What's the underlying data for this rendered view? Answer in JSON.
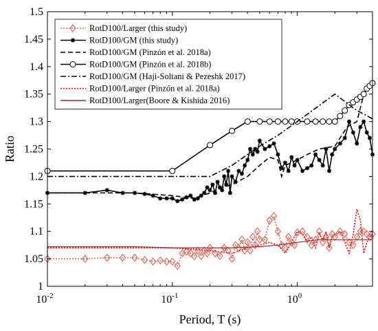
{
  "chart_data": {
    "type": "line",
    "xlabel": "Period, T (s)",
    "ylabel": "Ratio",
    "xscale": "log",
    "xlim": [
      0.01,
      4
    ],
    "ylim": [
      1,
      1.5
    ],
    "grid": false,
    "legend_position": "top-left",
    "y_ticks": [
      "1",
      "1.05",
      "1.1",
      "1.15",
      "1.2",
      "1.25",
      "1.3",
      "1.35",
      "1.4",
      "1.45",
      "1.5"
    ],
    "x_ticks": [
      {
        "value": 0.01,
        "base": "10",
        "exp": "-2"
      },
      {
        "value": 0.1,
        "base": "10",
        "exp": "-1"
      },
      {
        "value": 1,
        "base": "10",
        "exp": "0"
      }
    ],
    "series": [
      {
        "name": "RotD100/Larger (this study)",
        "color": "#e06a5a",
        "style": "dotted",
        "marker": "diamond",
        "x": [
          0.01,
          0.02,
          0.03,
          0.04,
          0.05,
          0.06,
          0.07,
          0.08,
          0.09,
          0.1,
          0.11,
          0.12,
          0.13,
          0.14,
          0.15,
          0.16,
          0.17,
          0.18,
          0.19,
          0.2,
          0.22,
          0.24,
          0.26,
          0.28,
          0.3,
          0.32,
          0.34,
          0.36,
          0.38,
          0.4,
          0.42,
          0.44,
          0.46,
          0.48,
          0.5,
          0.55,
          0.6,
          0.65,
          0.7,
          0.75,
          0.8,
          0.85,
          0.9,
          0.95,
          1.0,
          1.1,
          1.2,
          1.3,
          1.4,
          1.5,
          1.6,
          1.7,
          1.8,
          1.9,
          2.0,
          2.2,
          2.4,
          2.6,
          2.8,
          3.0,
          3.2,
          3.4,
          3.6,
          3.8,
          4.0
        ],
        "y": [
          1.05,
          1.05,
          1.052,
          1.052,
          1.052,
          1.048,
          1.045,
          1.047,
          1.045,
          1.045,
          1.037,
          1.06,
          1.063,
          1.06,
          1.055,
          1.065,
          1.055,
          1.065,
          1.06,
          1.07,
          1.06,
          1.055,
          1.07,
          1.065,
          1.05,
          1.075,
          1.07,
          1.085,
          1.065,
          1.08,
          1.065,
          1.09,
          1.075,
          1.1,
          1.085,
          1.085,
          1.12,
          1.128,
          1.1,
          1.075,
          1.07,
          1.09,
          1.08,
          1.075,
          1.098,
          1.1,
          1.09,
          1.075,
          1.085,
          1.1,
          1.08,
          1.09,
          1.07,
          1.095,
          1.09,
          1.1,
          1.095,
          1.08,
          1.075,
          1.09,
          1.1,
          1.1,
          1.095,
          1.09,
          1.095
        ]
      },
      {
        "name": "RotD100/GM (this study)",
        "color": "#000000",
        "style": "solid",
        "marker": "star",
        "x": [
          0.01,
          0.02,
          0.03,
          0.04,
          0.05,
          0.06,
          0.07,
          0.08,
          0.09,
          0.1,
          0.11,
          0.12,
          0.13,
          0.14,
          0.15,
          0.16,
          0.17,
          0.18,
          0.19,
          0.2,
          0.21,
          0.22,
          0.23,
          0.24,
          0.25,
          0.26,
          0.27,
          0.28,
          0.29,
          0.3,
          0.32,
          0.34,
          0.36,
          0.38,
          0.4,
          0.42,
          0.44,
          0.46,
          0.48,
          0.5,
          0.55,
          0.6,
          0.65,
          0.7,
          0.75,
          0.8,
          0.85,
          0.9,
          0.95,
          1.0,
          1.1,
          1.2,
          1.3,
          1.4,
          1.5,
          1.6,
          1.7,
          1.8,
          1.9,
          2.0,
          2.2,
          2.4,
          2.6,
          2.8,
          3.0,
          3.2,
          3.4,
          3.6,
          3.8,
          4.0
        ],
        "y": [
          1.17,
          1.17,
          1.175,
          1.17,
          1.17,
          1.168,
          1.165,
          1.16,
          1.16,
          1.16,
          1.155,
          1.158,
          1.162,
          1.165,
          1.158,
          1.16,
          1.165,
          1.17,
          1.18,
          1.175,
          1.185,
          1.17,
          1.19,
          1.18,
          1.175,
          1.2,
          1.185,
          1.21,
          1.17,
          1.2,
          1.19,
          1.21,
          1.205,
          1.22,
          1.23,
          1.25,
          1.24,
          1.25,
          1.245,
          1.265,
          1.25,
          1.255,
          1.26,
          1.24,
          1.215,
          1.225,
          1.21,
          1.235,
          1.22,
          1.23,
          1.21,
          1.215,
          1.22,
          1.24,
          1.23,
          1.22,
          1.25,
          1.21,
          1.24,
          1.25,
          1.26,
          1.27,
          1.3,
          1.28,
          1.26,
          1.29,
          1.3,
          1.28,
          1.27,
          1.24
        ]
      },
      {
        "name": "RotD100/GM (Pinzón et al. 2018a)",
        "color": "#000000",
        "style": "dashed",
        "x": [
          0.01,
          0.05,
          0.1,
          0.15,
          0.2,
          0.25,
          0.3,
          0.4,
          0.5,
          0.6,
          0.7,
          0.75,
          0.8,
          0.9,
          1.0,
          1.2,
          1.5,
          2.0,
          2.5,
          3.0,
          3.5,
          4.0
        ],
        "y": [
          1.17,
          1.17,
          1.165,
          1.16,
          1.17,
          1.18,
          1.185,
          1.2,
          1.22,
          1.235,
          1.23,
          1.2,
          1.22,
          1.225,
          1.23,
          1.24,
          1.25,
          1.255,
          1.29,
          1.3,
          1.36,
          1.36
        ]
      },
      {
        "name": "RotD100/GM (Pinzón et al. 2018b)",
        "color": "#000000",
        "style": "solid",
        "marker": "circle",
        "x": [
          0.01,
          0.1,
          0.2,
          0.3,
          0.4,
          0.5,
          0.6,
          0.7,
          0.8,
          0.9,
          1.0,
          1.2,
          1.4,
          1.6,
          1.8,
          2.0,
          2.2,
          2.4,
          2.6,
          2.8,
          3.0,
          3.2,
          3.4,
          3.6,
          3.8,
          4.0
        ],
        "y": [
          1.21,
          1.21,
          1.257,
          1.283,
          1.3,
          1.3,
          1.3,
          1.3,
          1.3,
          1.3,
          1.3,
          1.3,
          1.3,
          1.3,
          1.3,
          1.3,
          1.31,
          1.32,
          1.33,
          1.335,
          1.34,
          1.345,
          1.35,
          1.36,
          1.365,
          1.37
        ]
      },
      {
        "name": "RotD100/GM (Haji-Soltani & Pezeshk 2017)",
        "color": "#000000",
        "style": "dashdot",
        "x": [
          0.01,
          0.2,
          0.3,
          0.4,
          0.5,
          0.7,
          1.0,
          2.0,
          3.0,
          4.0
        ],
        "y": [
          1.2,
          1.2,
          1.22,
          1.24,
          1.255,
          1.275,
          1.3,
          1.35,
          1.32,
          1.305
        ]
      },
      {
        "name": "RotD100/Larger (Pinzón et al. 2018a)",
        "color": "#ff0000",
        "style": "dotted",
        "x": [
          0.01,
          0.05,
          0.1,
          0.2,
          0.3,
          0.4,
          0.5,
          0.6,
          0.7,
          0.8,
          0.9,
          1.0,
          1.1,
          1.2,
          1.3,
          1.4,
          1.5,
          1.6,
          1.7,
          1.8,
          1.9,
          2.0,
          2.2,
          2.4,
          2.6,
          2.8,
          3.0,
          3.2,
          3.4,
          3.6,
          3.8,
          4.0
        ],
        "y": [
          1.07,
          1.07,
          1.07,
          1.065,
          1.06,
          1.07,
          1.075,
          1.08,
          1.075,
          1.06,
          1.08,
          1.1,
          1.095,
          1.08,
          1.09,
          1.07,
          1.095,
          1.085,
          1.1,
          1.07,
          1.09,
          1.095,
          1.1,
          1.08,
          1.06,
          1.095,
          1.14,
          1.12,
          1.06,
          1.08,
          1.09,
          1.095
        ]
      },
      {
        "name": "RotD100/Larger(Boore & Kishida 2016)",
        "color": "#b22222",
        "style": "solid",
        "x": [
          0.01,
          0.05,
          0.1,
          0.2,
          0.3,
          0.5,
          0.7,
          1.0,
          1.5,
          2.0,
          3.0,
          4.0
        ],
        "y": [
          1.072,
          1.072,
          1.07,
          1.07,
          1.07,
          1.072,
          1.075,
          1.08,
          1.085,
          1.085,
          1.085,
          1.085
        ]
      }
    ]
  }
}
